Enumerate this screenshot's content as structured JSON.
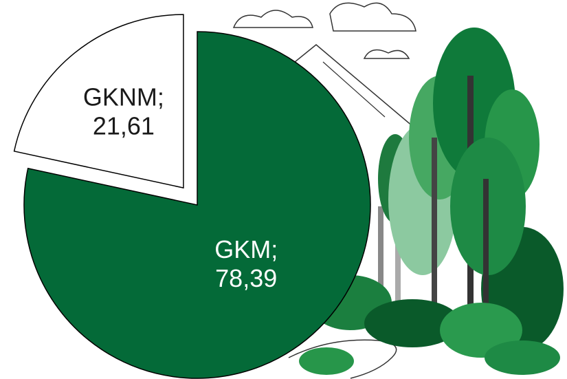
{
  "chart_data": {
    "type": "pie",
    "categories": [
      "GKNM;",
      "GKM;"
    ],
    "values": [
      21.61,
      78.39
    ],
    "value_labels": [
      "21,61",
      "78,39"
    ],
    "colors": [
      "#ffffff",
      "#046a38"
    ],
    "label_colors": [
      "#1a1a1a",
      "#ffffff"
    ],
    "exploded": [
      true,
      false
    ]
  }
}
